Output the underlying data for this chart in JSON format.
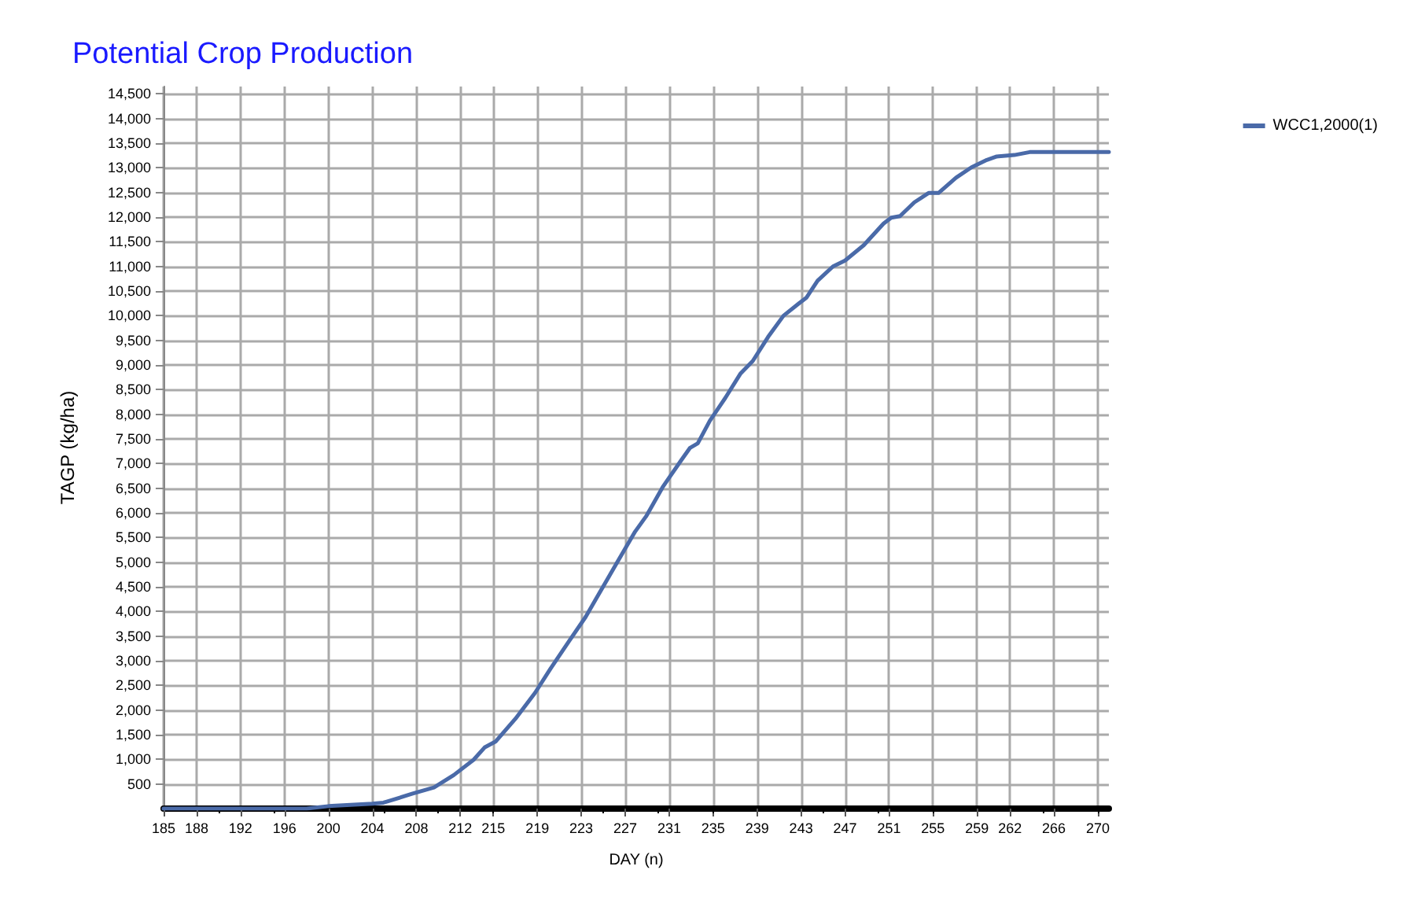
{
  "chart_data": {
    "type": "line",
    "title": "Potential Crop Production",
    "xlabel": "DAY (n)",
    "ylabel": "TAGP (kg/ha)",
    "xlim": [
      185,
      271
    ],
    "xticks": [
      185,
      188,
      192,
      196,
      200,
      204,
      208,
      212,
      215,
      219,
      223,
      227,
      231,
      235,
      239,
      243,
      247,
      251,
      255,
      259,
      262,
      266,
      270
    ],
    "ylim": [
      0,
      14650
    ],
    "yticks": [
      500,
      {
        "value": 1000,
        "label": "1,000"
      },
      {
        "value": 1500,
        "label": "1,500"
      },
      {
        "value": 2000,
        "label": "2,000"
      },
      {
        "value": 2500,
        "label": "2,500"
      },
      {
        "value": 3000,
        "label": "3,000"
      },
      {
        "value": 3500,
        "label": "3,500"
      },
      {
        "value": 4000,
        "label": "4,000"
      },
      {
        "value": 4500,
        "label": "4,500"
      },
      {
        "value": 5000,
        "label": "5,000"
      },
      {
        "value": 5500,
        "label": "5,500"
      },
      {
        "value": 6000,
        "label": "6,000"
      },
      {
        "value": 6500,
        "label": "6,500"
      },
      {
        "value": 7000,
        "label": "7,000"
      },
      {
        "value": 7500,
        "label": "7,500"
      },
      {
        "value": 8000,
        "label": "8,000"
      },
      {
        "value": 8500,
        "label": "8,500"
      },
      {
        "value": 9000,
        "label": "9,000"
      },
      {
        "value": 9500,
        "label": "9,500"
      },
      {
        "value": 10000,
        "label": "10,000"
      },
      {
        "value": 10500,
        "label": "10,500"
      },
      {
        "value": 11000,
        "label": "11,000"
      },
      {
        "value": 11500,
        "label": "11,500"
      },
      {
        "value": 12000,
        "label": "12,000"
      },
      {
        "value": 12500,
        "label": "12,500"
      },
      {
        "value": 13000,
        "label": "13,000"
      },
      {
        "value": 13500,
        "label": "13,500"
      },
      {
        "value": 14000,
        "label": "14,000"
      },
      {
        "value": 14500,
        "label": "14,500"
      }
    ],
    "grid": true,
    "legend": "top right",
    "marker": "none",
    "line_style": "solid",
    "series": [
      {
        "name": "WCC1,2000(1)",
        "color": "#4a6aa8",
        "x": [
          185,
          198,
          200,
          204,
          205,
          207.6,
          209.6,
          211.4,
          213.2,
          214.2,
          215.2,
          217,
          218.8,
          220.2,
          221.9,
          223.4,
          225,
          226.2,
          227.9,
          228.9,
          230.4,
          232.1,
          232.9,
          233.6,
          234.7,
          236.1,
          237.5,
          238.6,
          240,
          241.4,
          242.8,
          243.5,
          244.5,
          245.9,
          247,
          248.7,
          250.5,
          251.2,
          252,
          253.3,
          254.6,
          255.5,
          257.1,
          258.5,
          259.9,
          260.8,
          262.4,
          263.8,
          271
        ],
        "values": [
          0,
          0,
          50,
          100,
          120,
          300,
          430,
          680,
          990,
          1240,
          1360,
          1820,
          2350,
          2840,
          3400,
          3890,
          4510,
          4970,
          5620,
          5930,
          6520,
          7070,
          7320,
          7410,
          7870,
          8330,
          8830,
          9080,
          9570,
          10000,
          10250,
          10370,
          10710,
          11000,
          11120,
          11430,
          11870,
          11990,
          12020,
          12300,
          12490,
          12490,
          12800,
          13010,
          13160,
          13230,
          13260,
          13320,
          13320
        ]
      }
    ]
  }
}
